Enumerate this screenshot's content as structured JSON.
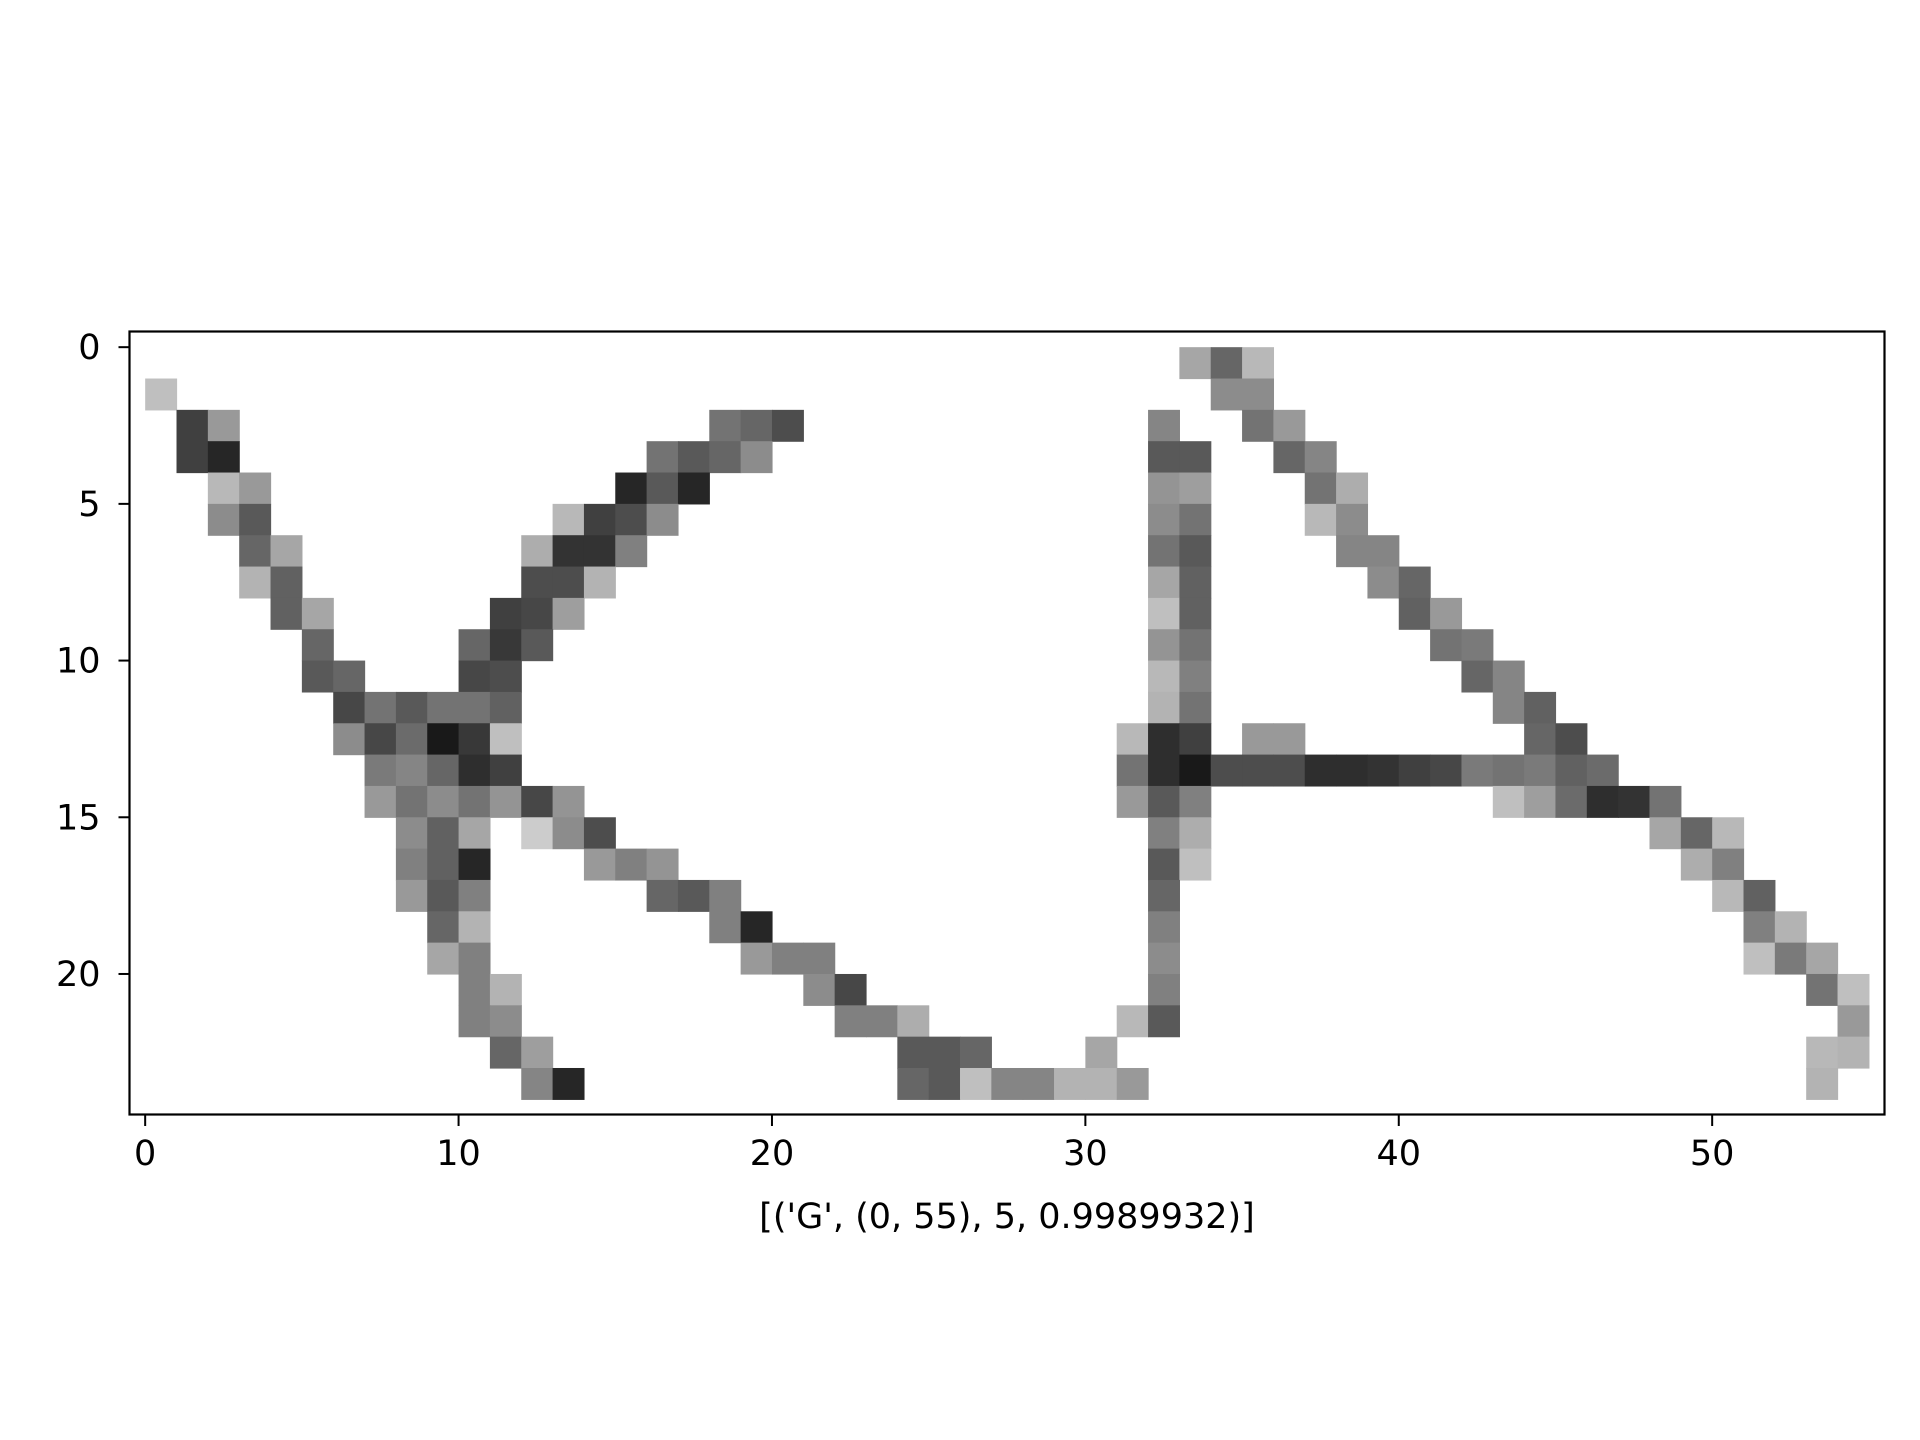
{
  "chart_data": {
    "type": "heatmap",
    "title": "",
    "xlabel": "[('G', (0, 55), 5, 0.9989932)]",
    "ylabel": "",
    "colormap": "gray_r",
    "value_range": [
      0,
      1
    ],
    "xlim": [
      -0.5,
      55.5
    ],
    "ylim": [
      24.5,
      -0.5
    ],
    "grid": false,
    "xticks": [
      0,
      10,
      20,
      30,
      40,
      50
    ],
    "yticks": [
      0,
      5,
      10,
      15,
      20
    ],
    "xtick_labels": [
      "0",
      "10",
      "20",
      "30",
      "40",
      "50"
    ],
    "ytick_labels": [
      "0",
      "5",
      "10",
      "15",
      "20"
    ],
    "cols": 56,
    "rows": 25,
    "cells": [
      [
        0,
        33,
        0.35
      ],
      [
        0,
        34,
        0.6
      ],
      [
        0,
        35,
        0.28
      ],
      [
        1,
        0,
        0.25
      ],
      [
        1,
        34,
        0.45
      ],
      [
        1,
        35,
        0.45
      ],
      [
        2,
        1,
        0.75
      ],
      [
        2,
        2,
        0.4
      ],
      [
        2,
        18,
        0.55
      ],
      [
        2,
        19,
        0.6
      ],
      [
        2,
        20,
        0.7
      ],
      [
        2,
        32,
        0.48
      ],
      [
        2,
        35,
        0.55
      ],
      [
        2,
        36,
        0.4
      ],
      [
        3,
        1,
        0.75
      ],
      [
        3,
        2,
        0.85
      ],
      [
        3,
        16,
        0.55
      ],
      [
        3,
        17,
        0.65
      ],
      [
        3,
        18,
        0.6
      ],
      [
        3,
        19,
        0.45
      ],
      [
        3,
        32,
        0.65
      ],
      [
        3,
        33,
        0.65
      ],
      [
        3,
        36,
        0.6
      ],
      [
        3,
        37,
        0.48
      ],
      [
        4,
        2,
        0.28
      ],
      [
        4,
        3,
        0.4
      ],
      [
        4,
        15,
        0.85
      ],
      [
        4,
        16,
        0.65
      ],
      [
        4,
        17,
        0.85
      ],
      [
        4,
        32,
        0.42
      ],
      [
        4,
        33,
        0.38
      ],
      [
        4,
        37,
        0.55
      ],
      [
        4,
        38,
        0.32
      ],
      [
        5,
        2,
        0.45
      ],
      [
        5,
        3,
        0.65
      ],
      [
        5,
        13,
        0.28
      ],
      [
        5,
        14,
        0.75
      ],
      [
        5,
        15,
        0.7
      ],
      [
        5,
        16,
        0.45
      ],
      [
        5,
        32,
        0.45
      ],
      [
        5,
        33,
        0.55
      ],
      [
        5,
        37,
        0.28
      ],
      [
        5,
        38,
        0.45
      ],
      [
        6,
        3,
        0.6
      ],
      [
        6,
        4,
        0.35
      ],
      [
        6,
        12,
        0.32
      ],
      [
        6,
        13,
        0.8
      ],
      [
        6,
        14,
        0.8
      ],
      [
        6,
        15,
        0.5
      ],
      [
        6,
        32,
        0.55
      ],
      [
        6,
        33,
        0.65
      ],
      [
        6,
        38,
        0.48
      ],
      [
        6,
        39,
        0.48
      ],
      [
        7,
        3,
        0.3
      ],
      [
        7,
        4,
        0.62
      ],
      [
        7,
        12,
        0.7
      ],
      [
        7,
        13,
        0.7
      ],
      [
        7,
        14,
        0.3
      ],
      [
        7,
        32,
        0.35
      ],
      [
        7,
        33,
        0.62
      ],
      [
        7,
        39,
        0.45
      ],
      [
        7,
        40,
        0.6
      ],
      [
        8,
        4,
        0.62
      ],
      [
        8,
        5,
        0.35
      ],
      [
        8,
        11,
        0.75
      ],
      [
        8,
        12,
        0.72
      ],
      [
        8,
        13,
        0.38
      ],
      [
        8,
        32,
        0.25
      ],
      [
        8,
        33,
        0.62
      ],
      [
        8,
        40,
        0.62
      ],
      [
        8,
        41,
        0.4
      ],
      [
        9,
        5,
        0.6
      ],
      [
        9,
        10,
        0.6
      ],
      [
        9,
        11,
        0.78
      ],
      [
        9,
        12,
        0.65
      ],
      [
        9,
        32,
        0.42
      ],
      [
        9,
        33,
        0.55
      ],
      [
        9,
        41,
        0.55
      ],
      [
        9,
        42,
        0.52
      ],
      [
        10,
        5,
        0.65
      ],
      [
        10,
        6,
        0.6
      ],
      [
        10,
        10,
        0.72
      ],
      [
        10,
        11,
        0.7
      ],
      [
        10,
        32,
        0.28
      ],
      [
        10,
        33,
        0.5
      ],
      [
        10,
        42,
        0.6
      ],
      [
        10,
        43,
        0.48
      ],
      [
        11,
        6,
        0.72
      ],
      [
        11,
        7,
        0.55
      ],
      [
        11,
        8,
        0.65
      ],
      [
        11,
        9,
        0.55
      ],
      [
        11,
        10,
        0.55
      ],
      [
        11,
        11,
        0.62
      ],
      [
        11,
        32,
        0.3
      ],
      [
        11,
        33,
        0.55
      ],
      [
        11,
        43,
        0.48
      ],
      [
        11,
        44,
        0.62
      ],
      [
        12,
        6,
        0.45
      ],
      [
        12,
        7,
        0.72
      ],
      [
        12,
        8,
        0.58
      ],
      [
        12,
        9,
        0.9
      ],
      [
        12,
        10,
        0.78
      ],
      [
        12,
        11,
        0.25
      ],
      [
        12,
        31,
        0.28
      ],
      [
        12,
        32,
        0.82
      ],
      [
        12,
        33,
        0.75
      ],
      [
        12,
        35,
        0.4
      ],
      [
        12,
        36,
        0.4
      ],
      [
        12,
        44,
        0.6
      ],
      [
        12,
        45,
        0.7
      ],
      [
        13,
        7,
        0.52
      ],
      [
        13,
        8,
        0.48
      ],
      [
        13,
        9,
        0.6
      ],
      [
        13,
        10,
        0.82
      ],
      [
        13,
        11,
        0.75
      ],
      [
        13,
        31,
        0.55
      ],
      [
        13,
        32,
        0.82
      ],
      [
        13,
        33,
        0.9
      ],
      [
        13,
        34,
        0.7
      ],
      [
        13,
        35,
        0.7
      ],
      [
        13,
        36,
        0.7
      ],
      [
        13,
        37,
        0.82
      ],
      [
        13,
        38,
        0.82
      ],
      [
        13,
        39,
        0.8
      ],
      [
        13,
        40,
        0.75
      ],
      [
        13,
        41,
        0.72
      ],
      [
        13,
        42,
        0.52
      ],
      [
        13,
        43,
        0.55
      ],
      [
        13,
        44,
        0.52
      ],
      [
        13,
        45,
        0.62
      ],
      [
        13,
        46,
        0.58
      ],
      [
        14,
        7,
        0.4
      ],
      [
        14,
        8,
        0.55
      ],
      [
        14,
        9,
        0.45
      ],
      [
        14,
        10,
        0.55
      ],
      [
        14,
        11,
        0.42
      ],
      [
        14,
        12,
        0.72
      ],
      [
        14,
        13,
        0.42
      ],
      [
        14,
        31,
        0.4
      ],
      [
        14,
        32,
        0.65
      ],
      [
        14,
        33,
        0.5
      ],
      [
        14,
        43,
        0.25
      ],
      [
        14,
        44,
        0.38
      ],
      [
        14,
        45,
        0.58
      ],
      [
        14,
        46,
        0.82
      ],
      [
        14,
        47,
        0.8
      ],
      [
        14,
        48,
        0.55
      ],
      [
        15,
        8,
        0.45
      ],
      [
        15,
        9,
        0.62
      ],
      [
        15,
        10,
        0.35
      ],
      [
        15,
        12,
        0.2
      ],
      [
        15,
        13,
        0.45
      ],
      [
        15,
        14,
        0.7
      ],
      [
        15,
        32,
        0.5
      ],
      [
        15,
        33,
        0.32
      ],
      [
        15,
        48,
        0.35
      ],
      [
        15,
        49,
        0.6
      ],
      [
        15,
        50,
        0.28
      ],
      [
        16,
        8,
        0.5
      ],
      [
        16,
        9,
        0.62
      ],
      [
        16,
        10,
        0.85
      ],
      [
        16,
        14,
        0.4
      ],
      [
        16,
        15,
        0.5
      ],
      [
        16,
        16,
        0.42
      ],
      [
        16,
        32,
        0.65
      ],
      [
        16,
        33,
        0.25
      ],
      [
        16,
        49,
        0.32
      ],
      [
        16,
        50,
        0.5
      ],
      [
        17,
        8,
        0.4
      ],
      [
        17,
        9,
        0.65
      ],
      [
        17,
        10,
        0.5
      ],
      [
        17,
        16,
        0.6
      ],
      [
        17,
        17,
        0.65
      ],
      [
        17,
        18,
        0.5
      ],
      [
        17,
        32,
        0.6
      ],
      [
        17,
        50,
        0.28
      ],
      [
        17,
        51,
        0.62
      ],
      [
        18,
        9,
        0.6
      ],
      [
        18,
        10,
        0.3
      ],
      [
        18,
        18,
        0.5
      ],
      [
        18,
        19,
        0.85
      ],
      [
        18,
        32,
        0.5
      ],
      [
        18,
        51,
        0.5
      ],
      [
        18,
        52,
        0.3
      ],
      [
        19,
        9,
        0.35
      ],
      [
        19,
        10,
        0.5
      ],
      [
        19,
        19,
        0.4
      ],
      [
        19,
        20,
        0.5
      ],
      [
        19,
        21,
        0.5
      ],
      [
        19,
        32,
        0.45
      ],
      [
        19,
        51,
        0.25
      ],
      [
        19,
        52,
        0.52
      ],
      [
        19,
        53,
        0.35
      ],
      [
        20,
        10,
        0.5
      ],
      [
        20,
        11,
        0.3
      ],
      [
        20,
        21,
        0.45
      ],
      [
        20,
        22,
        0.72
      ],
      [
        20,
        32,
        0.5
      ],
      [
        20,
        53,
        0.55
      ],
      [
        20,
        54,
        0.25
      ],
      [
        21,
        10,
        0.5
      ],
      [
        21,
        11,
        0.45
      ],
      [
        21,
        22,
        0.5
      ],
      [
        21,
        23,
        0.5
      ],
      [
        21,
        24,
        0.32
      ],
      [
        21,
        31,
        0.28
      ],
      [
        21,
        32,
        0.65
      ],
      [
        21,
        54,
        0.4
      ],
      [
        22,
        11,
        0.6
      ],
      [
        22,
        12,
        0.38
      ],
      [
        22,
        24,
        0.65
      ],
      [
        22,
        25,
        0.65
      ],
      [
        22,
        26,
        0.6
      ],
      [
        22,
        30,
        0.35
      ],
      [
        22,
        53,
        0.28
      ],
      [
        22,
        54,
        0.3
      ],
      [
        23,
        12,
        0.48
      ],
      [
        23,
        13,
        0.85
      ],
      [
        23,
        24,
        0.6
      ],
      [
        23,
        25,
        0.65
      ],
      [
        23,
        26,
        0.25
      ],
      [
        23,
        27,
        0.48
      ],
      [
        23,
        28,
        0.48
      ],
      [
        23,
        29,
        0.3
      ],
      [
        23,
        30,
        0.3
      ],
      [
        23,
        31,
        0.4
      ],
      [
        23,
        53,
        0.3
      ]
    ]
  }
}
